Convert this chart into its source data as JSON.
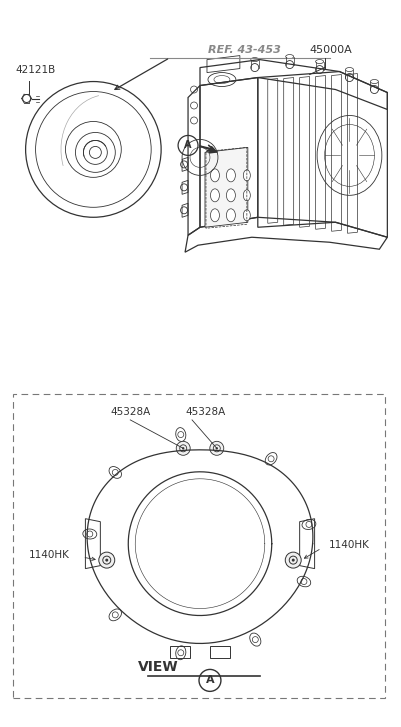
{
  "bg_color": "#ffffff",
  "line_color": "#333333",
  "ref_color": "#888888",
  "fig_width": 4.01,
  "fig_height": 7.27,
  "labels": {
    "part_42121B": "42121B",
    "ref_43453": "REF. 43-453",
    "part_45000A": "45000A",
    "part_45328A_1": "45328A",
    "part_45328A_2": "45328A",
    "part_1140HK_left": "1140HK",
    "part_1140HK_right": "1140HK",
    "view_label": "VIEW",
    "view_circle_label": "A",
    "circle_label_A": "A"
  }
}
